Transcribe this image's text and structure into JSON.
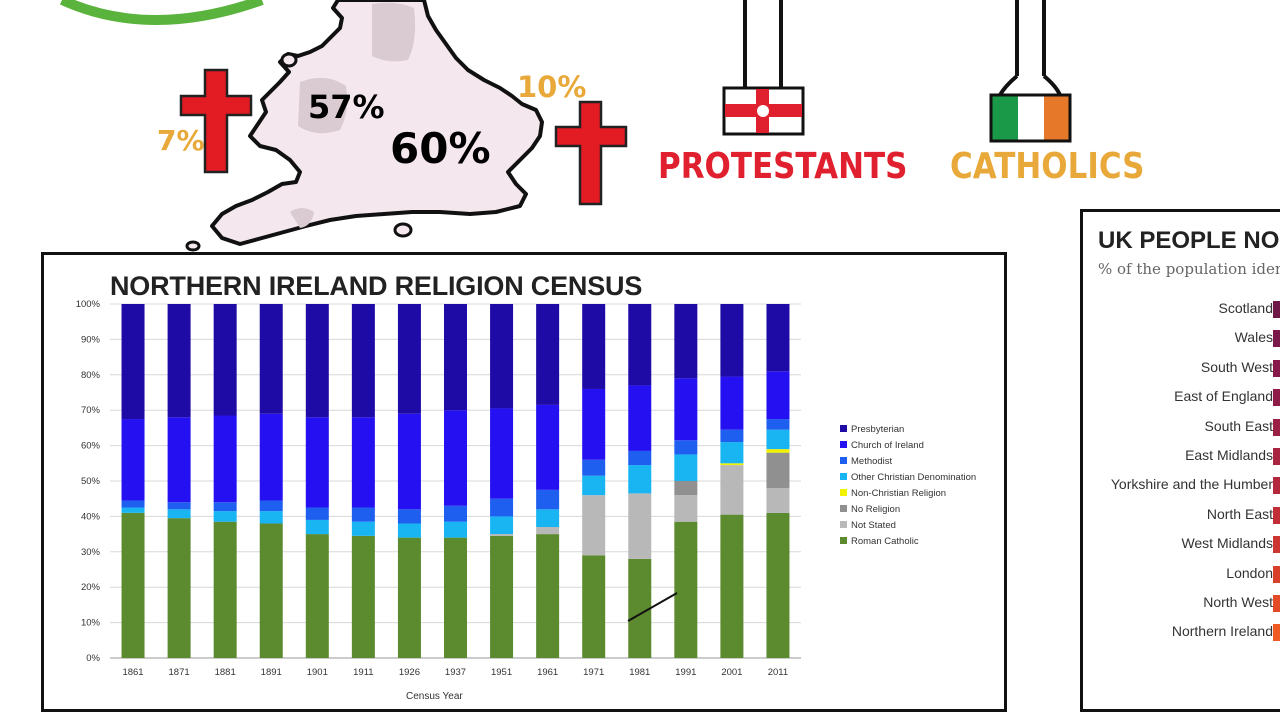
{
  "map": {
    "pct_center": "57%",
    "pct_england": "60%",
    "pct_left": "7%",
    "pct_right": "10%"
  },
  "banners": {
    "protestants": "PROTESTANTS",
    "catholics": "CATHOLICS"
  },
  "colors": {
    "cross_red": "#e31b23",
    "banner_red": "#e0202e",
    "banner_orange": "#e8a93a",
    "map_fill": "#f4e8ee"
  },
  "chart_data": [
    {
      "type": "bar",
      "stacked": true,
      "title": "NORTHERN IRELAND RELIGION CENSUS",
      "xlabel": "Census Year",
      "ylabel": "",
      "ylim": [
        0,
        100
      ],
      "yticks": [
        "0%",
        "10%",
        "20%",
        "30%",
        "40%",
        "50%",
        "60%",
        "70%",
        "80%",
        "90%",
        "100%"
      ],
      "grid": true,
      "legend_position": "right",
      "categories": [
        "1861",
        "1871",
        "1881",
        "1891",
        "1901",
        "1911",
        "1926",
        "1937",
        "1951",
        "1961",
        "1971",
        "1981",
        "1991",
        "2001",
        "2011"
      ],
      "series": [
        {
          "name": "Roman Catholic",
          "color": "#5c8a2e",
          "values": [
            41,
            39.5,
            38.5,
            38,
            35,
            34.5,
            34,
            34,
            34.5,
            35,
            29,
            28,
            38.5,
            40.5,
            41
          ]
        },
        {
          "name": "Not Stated",
          "color": "#b8b8b8",
          "values": [
            0,
            0,
            0,
            0,
            0,
            0,
            0,
            0,
            0.5,
            2,
            17,
            18.5,
            7.5,
            14,
            7
          ]
        },
        {
          "name": "No Religion",
          "color": "#909090",
          "values": [
            0,
            0,
            0,
            0,
            0,
            0,
            0,
            0,
            0,
            0,
            0,
            0,
            4,
            0,
            10
          ]
        },
        {
          "name": "Non-Christian Religion",
          "color": "#f2f200",
          "values": [
            0,
            0,
            0,
            0,
            0,
            0,
            0,
            0,
            0,
            0,
            0,
            0,
            0,
            0.5,
            1
          ]
        },
        {
          "name": "Other Christian Denomination",
          "color": "#19b5f2",
          "values": [
            1.5,
            2.5,
            3,
            3.5,
            4,
            4,
            4,
            4.5,
            5,
            5,
            5.5,
            8,
            7.5,
            6,
            5.5
          ]
        },
        {
          "name": "Methodist",
          "color": "#1f5ff0",
          "values": [
            2,
            2,
            2.5,
            3,
            3.5,
            4,
            4,
            4.5,
            5,
            5.5,
            4.5,
            4,
            4,
            3.5,
            3
          ]
        },
        {
          "name": "Church of Ireland",
          "color": "#2410f0",
          "values": [
            23,
            24,
            24.5,
            24.5,
            25.5,
            25.5,
            27,
            27,
            25.5,
            24,
            20,
            18.5,
            17.5,
            15,
            13.5
          ]
        },
        {
          "name": "Presbyterian",
          "color": "#1e0aa4",
          "values": [
            32.5,
            32,
            31.5,
            31,
            32,
            32,
            31,
            30,
            29.5,
            28.5,
            24,
            23,
            21,
            20.5,
            19
          ]
        }
      ],
      "legend_order": [
        "Presbyterian",
        "Church of Ireland",
        "Methodist",
        "Other Christian Denomination",
        "Non-Christian Religion",
        "No Religion",
        "Not Stated",
        "Roman Catholic"
      ]
    },
    {
      "type": "bar",
      "orientation": "horizontal",
      "title": "UK PEOPLE NO",
      "subtitle": "% of the population iden",
      "categories": [
        "Scotland",
        "Wales",
        "South West",
        "East of England",
        "South East",
        "East Midlands",
        "Yorkshire and the Humber",
        "North East",
        "West Midlands",
        "London",
        "North West",
        "Northern Ireland"
      ],
      "colors": [
        "#6f1747",
        "#7a184a",
        "#86194a",
        "#8f1c48",
        "#9a2045",
        "#a92441",
        "#b4283d",
        "#c22e36",
        "#cc3632",
        "#d8402c",
        "#e34a28",
        "#ee5a22"
      ]
    }
  ]
}
